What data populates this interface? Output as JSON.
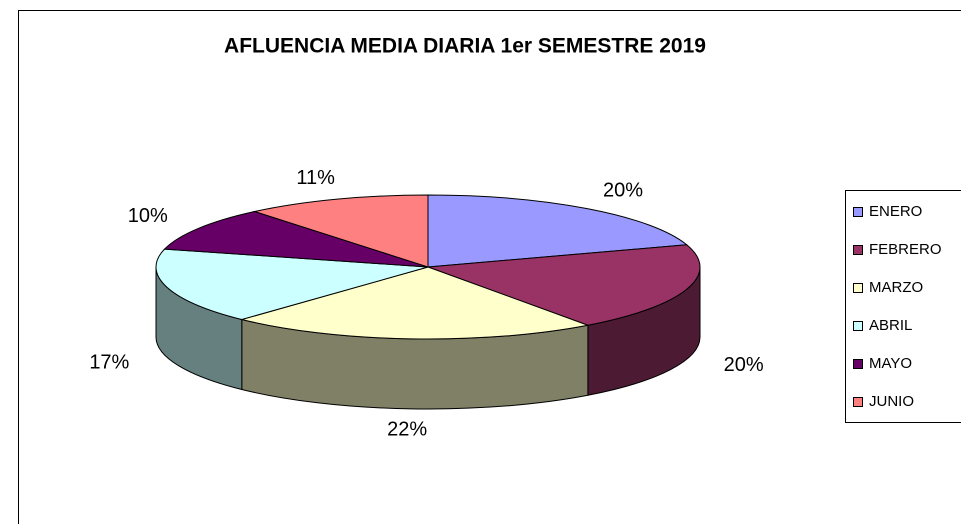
{
  "chart_data": {
    "type": "pie3d",
    "title": "AFLUENCIA MEDIA DIARIA 1er SEMESTRE 2019",
    "categories": [
      "ENERO",
      "FEBRERO",
      "MARZO",
      "ABRIL",
      "MAYO",
      "JUNIO"
    ],
    "values": [
      20,
      20,
      22,
      17,
      10,
      11
    ],
    "value_labels": [
      "20%",
      "20%",
      "22%",
      "17%",
      "10%",
      "11%"
    ],
    "colors": [
      "#9999ff",
      "#993366",
      "#ffffcc",
      "#ccffff",
      "#660066",
      "#ff8080"
    ],
    "legend": "right"
  }
}
